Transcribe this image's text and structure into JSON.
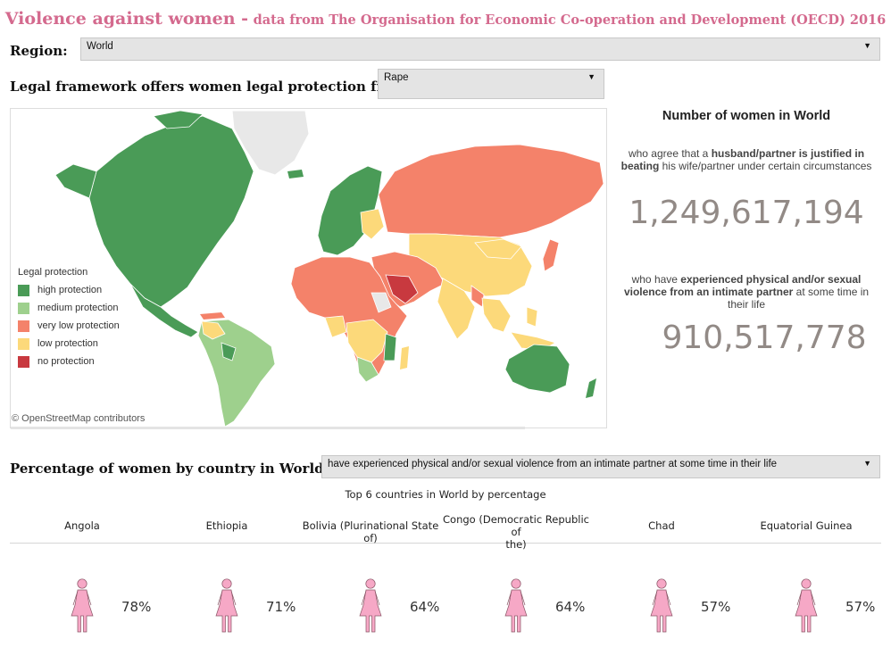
{
  "header": {
    "title_main": "Violence against women -",
    "title_sub": "data from The Organisation for Economic Co-operation and Development (OECD) 2016"
  },
  "region": {
    "label": "Region:",
    "selected": "World"
  },
  "legal": {
    "label": "Legal framework offers women legal protection from:",
    "selected": "Rape"
  },
  "map": {
    "legend_title": "Legal protection",
    "legend": [
      {
        "label": "high protection",
        "color": "#4a9b57"
      },
      {
        "label": "medium protection",
        "color": "#9ed08d"
      },
      {
        "label": "very low protection",
        "color": "#f4826a"
      },
      {
        "label": "low protection",
        "color": "#fcd97a"
      },
      {
        "label": "no protection",
        "color": "#c8393f"
      }
    ],
    "credit": "© OpenStreetMap contributors"
  },
  "stats": {
    "title": "Number of women in World",
    "stat1_line1_pre": "who agree that a ",
    "stat1_line1_bold": "husband/partner is justified in",
    "stat1_line2_bold": "beating",
    "stat1_line2_rest": " his wife/partner under certain circumstances",
    "stat1_value": "1,249,617,194",
    "stat2_line1_pre": "who have ",
    "stat2_line1_bold": "experienced physical and/or sexual",
    "stat2_line2_bold": "violence from an intimate partner",
    "stat2_line2_rest": " at some time in",
    "stat2_line3": "their life",
    "stat2_value": "910,517,778"
  },
  "pct_section": {
    "label": "Percentage of women by country in World who:",
    "selected": "have experienced physical and/or sexual violence from an intimate partner at some time in their life",
    "subtitle": "Top 6 countries in World by percentage",
    "icon_color": "#f6a8c6",
    "countries": [
      {
        "name": "Angola",
        "name2": "",
        "pct": "78%"
      },
      {
        "name": "Ethiopia",
        "name2": "",
        "pct": "71%"
      },
      {
        "name": "Bolivia (Plurinational State of)",
        "name2": "",
        "pct": "64%"
      },
      {
        "name": "Congo (Democratic Republic of",
        "name2": "the)",
        "pct": "64%"
      },
      {
        "name": "Chad",
        "name2": "",
        "pct": "57%"
      },
      {
        "name": "Equatorial Guinea",
        "name2": "",
        "pct": "57%"
      }
    ]
  }
}
